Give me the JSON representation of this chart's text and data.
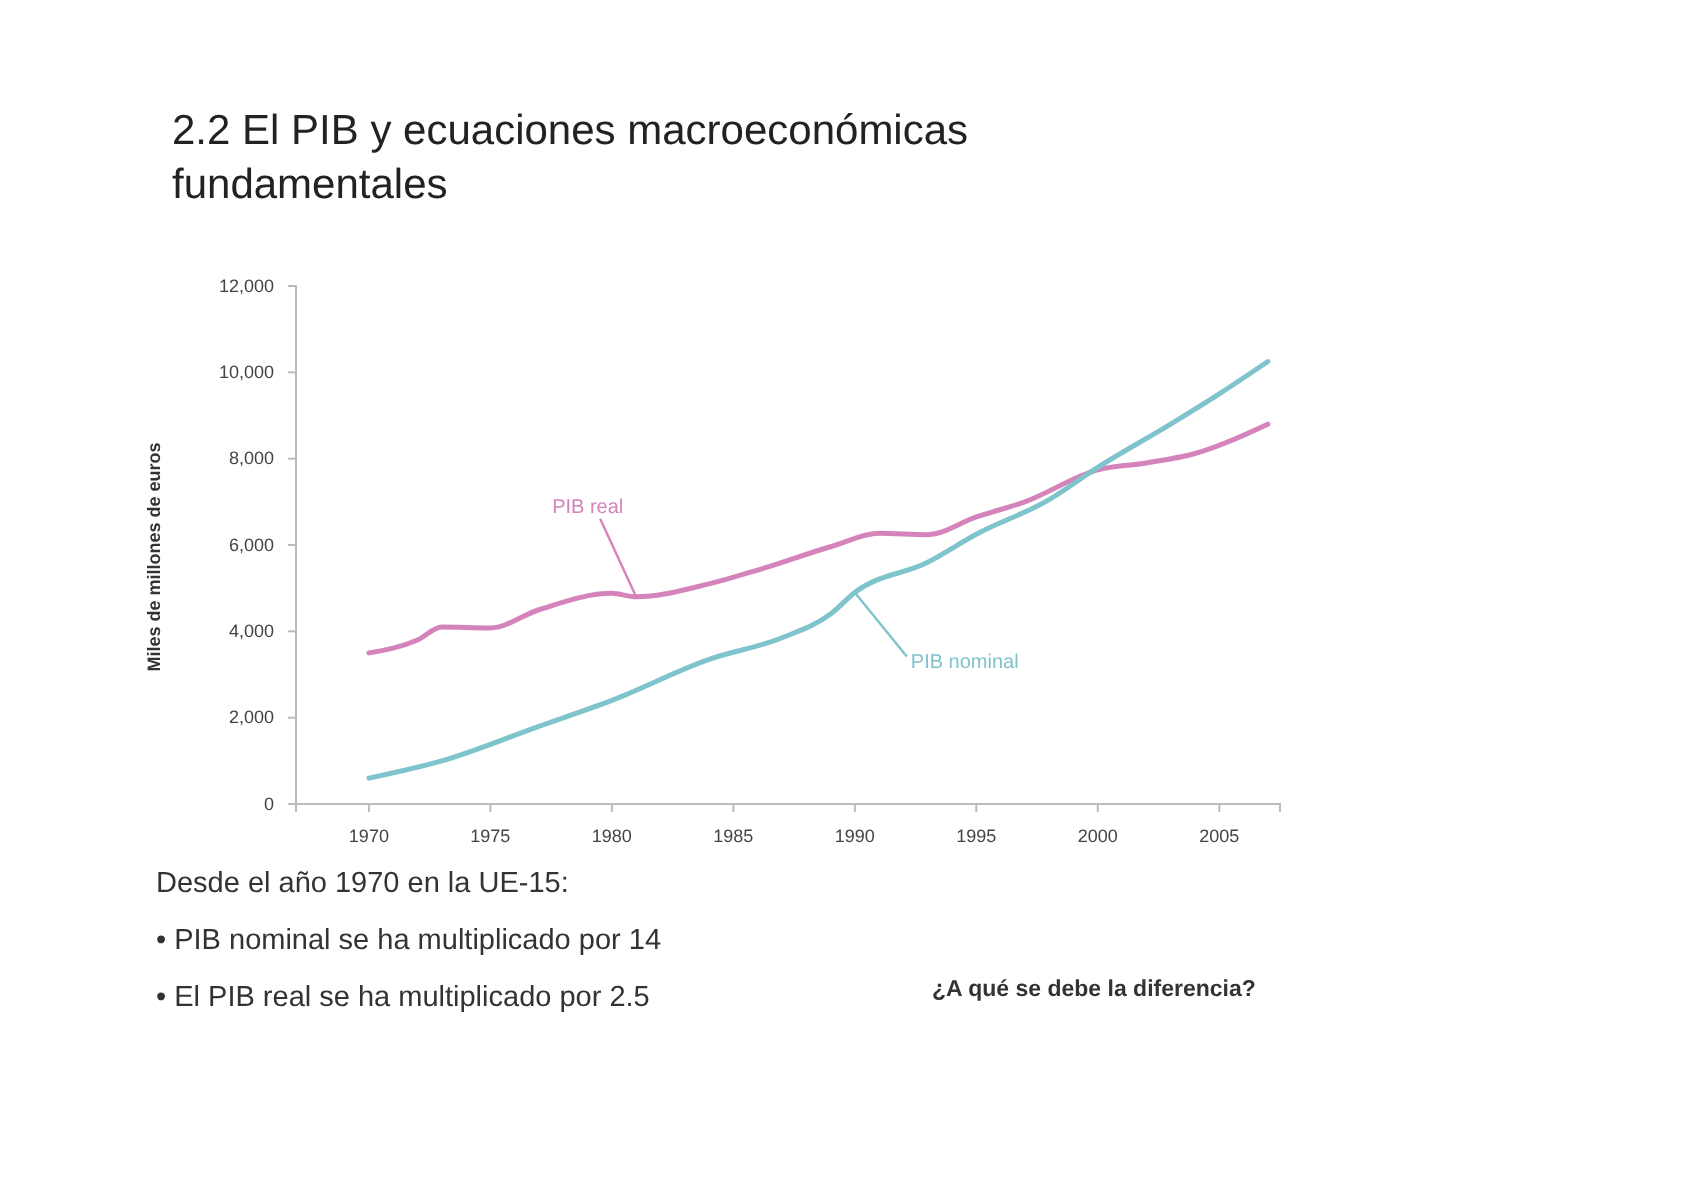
{
  "chart_data": {
    "type": "line",
    "title": "2.2 El PIB y ecuaciones macroeconómicas fundamentales",
    "ylabel": "Miles de millones de euros",
    "series": [
      {
        "name": "PIB real",
        "color": "#d484bb",
        "x": [
          1970,
          1972,
          1973,
          1975,
          1977,
          1980,
          1981,
          1984,
          1986,
          1989,
          1991,
          1993,
          1995,
          1997,
          2000,
          2002,
          2004,
          2007
        ],
        "values": [
          3500,
          3800,
          4100,
          4080,
          4500,
          4880,
          4800,
          5100,
          5420,
          5960,
          6270,
          6240,
          6650,
          7000,
          7740,
          7900,
          8120,
          8800
        ]
      },
      {
        "name": "PIB nominal",
        "color": "#7fc3cc",
        "x": [
          1970,
          1973,
          1977,
          1980,
          1984,
          1987,
          1989,
          1990,
          1993,
          1995,
          1998,
          2000,
          2003,
          2005,
          2007
        ],
        "values": [
          600,
          1000,
          1800,
          2400,
          3350,
          3850,
          4400,
          4900,
          5600,
          6250,
          7050,
          7800,
          8800,
          9500,
          10250
        ]
      }
    ],
    "xlim": [
      1967,
      2007.5
    ],
    "xticks": [
      1970,
      1975,
      1980,
      1985,
      1990,
      1995,
      2000,
      2005
    ],
    "ylim": [
      0,
      12000
    ],
    "yticks": [
      0,
      {
        "value": 2000,
        "label": "2,000"
      },
      {
        "value": 4000,
        "label": "4,000"
      },
      {
        "value": 6000,
        "label": "6,000"
      },
      {
        "value": 8000,
        "label": "8,000"
      },
      {
        "value": 10000,
        "label": "10,000"
      },
      {
        "value": 12000,
        "label": "12,000"
      }
    ],
    "legend": false,
    "grid": false,
    "annotations": [
      "Desde el año 1970 en la UE-15:",
      "• PIB nominal se ha multiplicado por 14",
      "• El PIB real se ha multiplicado por 2.5",
      "¿A qué se debe la diferencia?"
    ]
  }
}
